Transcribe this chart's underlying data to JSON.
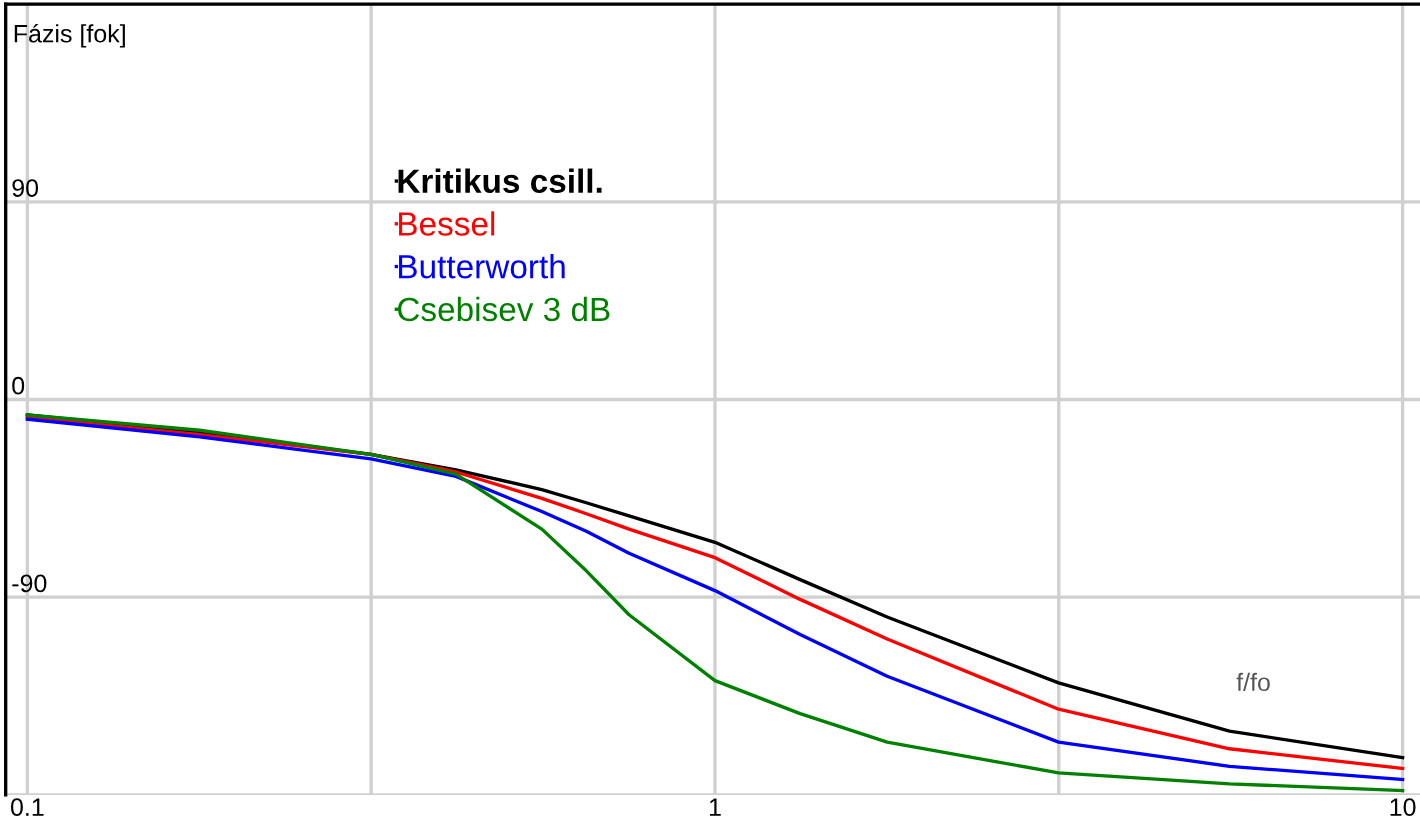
{
  "chart_data": {
    "type": "line",
    "xlabel": "f/fo",
    "ylabel": "Fázis [fok]",
    "log": "x",
    "x": [
      0.1,
      0.178,
      0.316,
      0.42,
      0.56,
      0.65,
      0.75,
      1,
      1.33,
      1.78,
      3.16,
      5.6,
      10
    ],
    "series": [
      {
        "name": "Kritikus csill.",
        "color": "#000000",
        "values": [
          -7,
          -15,
          -25,
          -32,
          -41,
          -47,
          -53,
          -65,
          -82,
          -99,
          -129,
          -151,
          -163
        ]
      },
      {
        "name": "Bessel",
        "color": "#ff0000",
        "values": [
          -8,
          -16,
          -25,
          -33,
          -45,
          -52,
          -59,
          -72,
          -91,
          -109,
          -141,
          -159,
          -168
        ]
      },
      {
        "name": "Butterworth",
        "color": "#0000ff",
        "values": [
          -9,
          -17,
          -27,
          -35,
          -51,
          -60,
          -70,
          -87,
          -107,
          -126,
          -156,
          -167,
          -173
        ]
      },
      {
        "name": "Csebisev 3 dB",
        "color": "#008000",
        "values": [
          -7,
          -14,
          -25,
          -34,
          -59,
          -78,
          -98,
          -128,
          -143,
          -156,
          -170,
          -175,
          -178
        ]
      }
    ],
    "xlim": [
      0.093,
      10.6
    ],
    "ylim": [
      -180,
      180
    ],
    "xticks": [
      0.1,
      {
        "value": 0.3162,
        "label": null
      },
      1,
      {
        "value": 3.162,
        "label": null
      },
      10
    ],
    "yticks": [
      {
        "value": -180,
        "label": null
      },
      -90,
      0,
      90,
      {
        "value": 180,
        "label": null
      }
    ],
    "grid": true,
    "legend": "top left",
    "marker": "none",
    "line_style": "solid"
  }
}
